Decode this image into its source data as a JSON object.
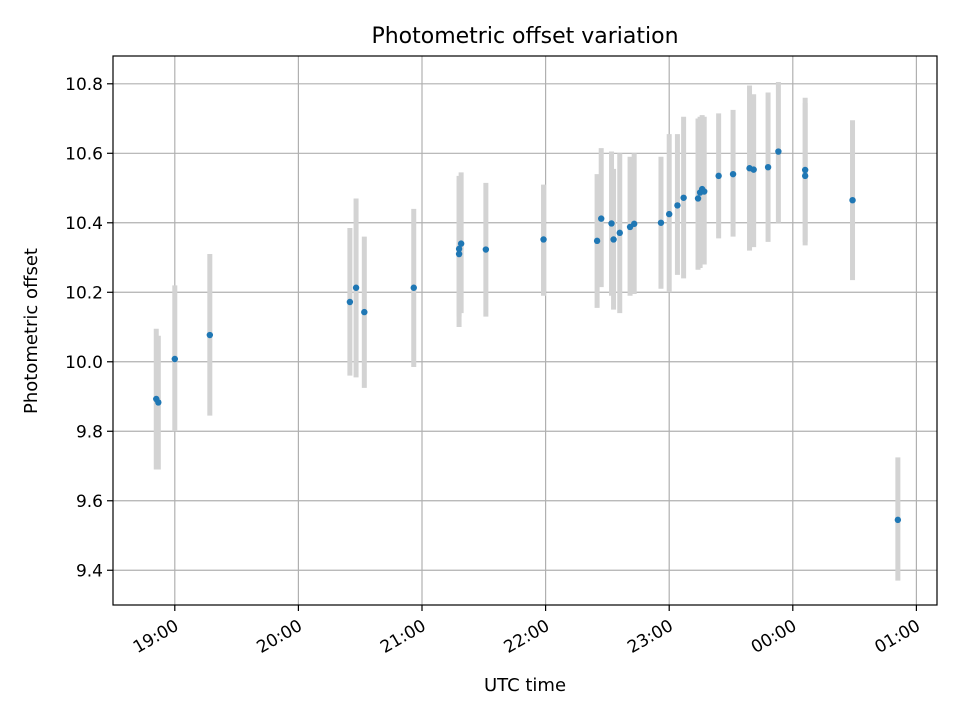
{
  "chart_data": {
    "type": "scatter",
    "title": "Photometric offset variation",
    "xlabel": "UTC time",
    "ylabel": "Photometric offset",
    "x_unit": "hour",
    "xlim": [
      "18:30",
      "25:10"
    ],
    "ylim": [
      9.3,
      10.88
    ],
    "x_ticks": [
      {
        "value": "19:00",
        "label": "19:00"
      },
      {
        "value": "20:00",
        "label": "20:00"
      },
      {
        "value": "21:00",
        "label": "21:00"
      },
      {
        "value": "22:00",
        "label": "22:00"
      },
      {
        "value": "23:00",
        "label": "23:00"
      },
      {
        "value": "24:00",
        "label": "00:00"
      },
      {
        "value": "25:00",
        "label": "01:00"
      }
    ],
    "y_ticks": [
      9.4,
      9.6,
      9.8,
      10.0,
      10.2,
      10.4,
      10.6,
      10.8
    ],
    "grid": true,
    "marker_color": "#1f77b4",
    "errorbar_color": "#d3d3d3",
    "points": [
      {
        "t": "18:51",
        "y": 9.893,
        "lo": 9.69,
        "hi": 10.095
      },
      {
        "t": "18:52",
        "y": 9.883,
        "lo": 9.69,
        "hi": 10.075
      },
      {
        "t": "19:00",
        "y": 10.008,
        "lo": 9.8,
        "hi": 10.22
      },
      {
        "t": "19:17",
        "y": 10.077,
        "lo": 9.845,
        "hi": 10.31
      },
      {
        "t": "20:25",
        "y": 10.172,
        "lo": 9.96,
        "hi": 10.385
      },
      {
        "t": "20:28",
        "y": 10.213,
        "lo": 9.955,
        "hi": 10.47
      },
      {
        "t": "20:32",
        "y": 10.143,
        "lo": 9.925,
        "hi": 10.36
      },
      {
        "t": "20:56",
        "y": 10.213,
        "lo": 9.985,
        "hi": 10.44
      },
      {
        "t": "21:18",
        "y": 10.325,
        "lo": 10.13,
        "hi": 10.535
      },
      {
        "t": "21:18",
        "y": 10.31,
        "lo": 10.1,
        "hi": 10.525
      },
      {
        "t": "21:19",
        "y": 10.34,
        "lo": 10.14,
        "hi": 10.545
      },
      {
        "t": "21:31",
        "y": 10.323,
        "lo": 10.13,
        "hi": 10.515
      },
      {
        "t": "21:59",
        "y": 10.352,
        "lo": 10.19,
        "hi": 10.51
      },
      {
        "t": "22:25",
        "y": 10.348,
        "lo": 10.155,
        "hi": 10.54
      },
      {
        "t": "22:27",
        "y": 10.412,
        "lo": 10.215,
        "hi": 10.615
      },
      {
        "t": "22:32",
        "y": 10.398,
        "lo": 10.19,
        "hi": 10.605
      },
      {
        "t": "22:33",
        "y": 10.352,
        "lo": 10.15,
        "hi": 10.555
      },
      {
        "t": "22:36",
        "y": 10.371,
        "lo": 10.14,
        "hi": 10.6
      },
      {
        "t": "22:41",
        "y": 10.388,
        "lo": 10.19,
        "hi": 10.59
      },
      {
        "t": "22:43",
        "y": 10.397,
        "lo": 10.195,
        "hi": 10.6
      },
      {
        "t": "22:56",
        "y": 10.4,
        "lo": 10.21,
        "hi": 10.59
      },
      {
        "t": "23:00",
        "y": 10.425,
        "lo": 10.2,
        "hi": 10.655
      },
      {
        "t": "23:04",
        "y": 10.45,
        "lo": 10.25,
        "hi": 10.655
      },
      {
        "t": "23:07",
        "y": 10.472,
        "lo": 10.24,
        "hi": 10.705
      },
      {
        "t": "23:14",
        "y": 10.47,
        "lo": 10.265,
        "hi": 10.7
      },
      {
        "t": "23:15",
        "y": 10.487,
        "lo": 10.27,
        "hi": 10.705
      },
      {
        "t": "23:16",
        "y": 10.497,
        "lo": 10.28,
        "hi": 10.71
      },
      {
        "t": "23:17",
        "y": 10.49,
        "lo": 10.28,
        "hi": 10.705
      },
      {
        "t": "23:24",
        "y": 10.535,
        "lo": 10.355,
        "hi": 10.715
      },
      {
        "t": "23:31",
        "y": 10.54,
        "lo": 10.36,
        "hi": 10.725
      },
      {
        "t": "23:39",
        "y": 10.557,
        "lo": 10.32,
        "hi": 10.795
      },
      {
        "t": "23:41",
        "y": 10.553,
        "lo": 10.33,
        "hi": 10.77
      },
      {
        "t": "23:48",
        "y": 10.56,
        "lo": 10.345,
        "hi": 10.775
      },
      {
        "t": "23:53",
        "y": 10.605,
        "lo": 10.4,
        "hi": 10.805
      },
      {
        "t": "24:06",
        "y": 10.552,
        "lo": 10.345,
        "hi": 10.76
      },
      {
        "t": "24:06",
        "y": 10.535,
        "lo": 10.335,
        "hi": 10.745
      },
      {
        "t": "24:29",
        "y": 10.465,
        "lo": 10.235,
        "hi": 10.695
      },
      {
        "t": "24:51",
        "y": 9.545,
        "lo": 9.37,
        "hi": 9.725
      }
    ]
  }
}
